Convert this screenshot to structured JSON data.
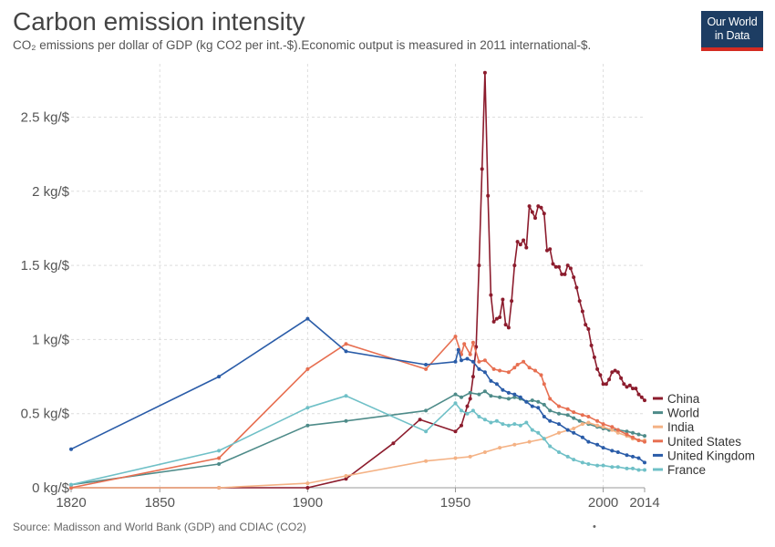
{
  "header": {
    "title": "Carbon emission intensity",
    "subtitle": "CO₂ emissions per dollar of GDP (kg CO2 per int.-$).Economic output is measured in 2011 international-$.",
    "logo_line1": "Our World",
    "logo_line2": "in Data"
  },
  "footer": {
    "source": "Source: Madisson and World Bank (GDP) and CDIAC (CO2)",
    "dot": "•"
  },
  "chart_data": {
    "type": "line",
    "ylabel": "",
    "xlabel": "",
    "xlim": [
      1820,
      2014
    ],
    "ylim": [
      0,
      2.8
    ],
    "x_ticks": [
      1820,
      1850,
      1900,
      1950,
      2000,
      2014
    ],
    "y_ticks": [
      {
        "value": 0,
        "label": "0 kg/$"
      },
      {
        "value": 0.5,
        "label": "0.5 kg/$"
      },
      {
        "value": 1,
        "label": "1 kg/$"
      },
      {
        "value": 1.5,
        "label": "1.5 kg/$"
      },
      {
        "value": 2,
        "label": "2 kg/$"
      },
      {
        "value": 2.5,
        "label": "2.5 kg/$"
      }
    ],
    "grid": true,
    "legend_position": "right",
    "series": [
      {
        "name": "China",
        "color": "#8c1c2d",
        "points": [
          [
            1820,
            0.0
          ],
          [
            1870,
            0.0
          ],
          [
            1900,
            0.0
          ],
          [
            1913,
            0.06
          ],
          [
            1929,
            0.3
          ],
          [
            1938,
            0.46
          ],
          [
            1950,
            0.38
          ],
          [
            1952,
            0.42
          ],
          [
            1954,
            0.55
          ],
          [
            1955,
            0.6
          ],
          [
            1956,
            0.75
          ],
          [
            1957,
            0.95
          ],
          [
            1958,
            1.5
          ],
          [
            1959,
            2.15
          ],
          [
            1960,
            2.8
          ],
          [
            1961,
            1.97
          ],
          [
            1962,
            1.3
          ],
          [
            1963,
            1.12
          ],
          [
            1964,
            1.14
          ],
          [
            1965,
            1.15
          ],
          [
            1966,
            1.27
          ],
          [
            1967,
            1.1
          ],
          [
            1968,
            1.08
          ],
          [
            1969,
            1.26
          ],
          [
            1970,
            1.5
          ],
          [
            1971,
            1.66
          ],
          [
            1972,
            1.64
          ],
          [
            1973,
            1.67
          ],
          [
            1974,
            1.62
          ],
          [
            1975,
            1.9
          ],
          [
            1976,
            1.86
          ],
          [
            1977,
            1.82
          ],
          [
            1978,
            1.9
          ],
          [
            1979,
            1.89
          ],
          [
            1980,
            1.85
          ],
          [
            1981,
            1.6
          ],
          [
            1982,
            1.61
          ],
          [
            1983,
            1.51
          ],
          [
            1984,
            1.49
          ],
          [
            1985,
            1.49
          ],
          [
            1986,
            1.44
          ],
          [
            1987,
            1.44
          ],
          [
            1988,
            1.5
          ],
          [
            1989,
            1.48
          ],
          [
            1990,
            1.42
          ],
          [
            1991,
            1.35
          ],
          [
            1992,
            1.26
          ],
          [
            1993,
            1.19
          ],
          [
            1994,
            1.1
          ],
          [
            1995,
            1.07
          ],
          [
            1996,
            0.96
          ],
          [
            1997,
            0.88
          ],
          [
            1998,
            0.8
          ],
          [
            1999,
            0.76
          ],
          [
            2000,
            0.7
          ],
          [
            2001,
            0.7
          ],
          [
            2002,
            0.73
          ],
          [
            2003,
            0.78
          ],
          [
            2004,
            0.79
          ],
          [
            2005,
            0.78
          ],
          [
            2006,
            0.74
          ],
          [
            2007,
            0.7
          ],
          [
            2008,
            0.68
          ],
          [
            2009,
            0.69
          ],
          [
            2010,
            0.67
          ],
          [
            2011,
            0.67
          ],
          [
            2012,
            0.63
          ],
          [
            2013,
            0.61
          ],
          [
            2014,
            0.59
          ]
        ]
      },
      {
        "name": "World",
        "color": "#4e8b89",
        "points": [
          [
            1820,
            0.02
          ],
          [
            1870,
            0.16
          ],
          [
            1900,
            0.42
          ],
          [
            1913,
            0.45
          ],
          [
            1940,
            0.52
          ],
          [
            1950,
            0.63
          ],
          [
            1952,
            0.61
          ],
          [
            1955,
            0.64
          ],
          [
            1958,
            0.63
          ],
          [
            1960,
            0.65
          ],
          [
            1962,
            0.62
          ],
          [
            1965,
            0.61
          ],
          [
            1968,
            0.6
          ],
          [
            1970,
            0.61
          ],
          [
            1972,
            0.6
          ],
          [
            1974,
            0.58
          ],
          [
            1976,
            0.59
          ],
          [
            1978,
            0.58
          ],
          [
            1980,
            0.56
          ],
          [
            1982,
            0.52
          ],
          [
            1985,
            0.5
          ],
          [
            1988,
            0.49
          ],
          [
            1990,
            0.47
          ],
          [
            1992,
            0.45
          ],
          [
            1995,
            0.43
          ],
          [
            1998,
            0.41
          ],
          [
            2000,
            0.4
          ],
          [
            2002,
            0.39
          ],
          [
            2005,
            0.39
          ],
          [
            2008,
            0.38
          ],
          [
            2010,
            0.37
          ],
          [
            2012,
            0.36
          ],
          [
            2014,
            0.35
          ]
        ]
      },
      {
        "name": "India",
        "color": "#f4b285",
        "points": [
          [
            1820,
            0.0
          ],
          [
            1870,
            0.0
          ],
          [
            1900,
            0.03
          ],
          [
            1913,
            0.08
          ],
          [
            1940,
            0.18
          ],
          [
            1950,
            0.2
          ],
          [
            1955,
            0.21
          ],
          [
            1960,
            0.24
          ],
          [
            1965,
            0.27
          ],
          [
            1970,
            0.29
          ],
          [
            1975,
            0.31
          ],
          [
            1980,
            0.33
          ],
          [
            1985,
            0.37
          ],
          [
            1990,
            0.4
          ],
          [
            1993,
            0.43
          ],
          [
            1995,
            0.44
          ],
          [
            1998,
            0.42
          ],
          [
            2000,
            0.41
          ],
          [
            2003,
            0.39
          ],
          [
            2005,
            0.37
          ],
          [
            2008,
            0.35
          ],
          [
            2010,
            0.33
          ],
          [
            2012,
            0.32
          ],
          [
            2014,
            0.32
          ]
        ]
      },
      {
        "name": "United States",
        "color": "#e76f51",
        "points": [
          [
            1820,
            0.0
          ],
          [
            1870,
            0.2
          ],
          [
            1900,
            0.8
          ],
          [
            1913,
            0.97
          ],
          [
            1940,
            0.8
          ],
          [
            1950,
            1.02
          ],
          [
            1952,
            0.9
          ],
          [
            1953,
            0.97
          ],
          [
            1955,
            0.9
          ],
          [
            1956,
            0.98
          ],
          [
            1958,
            0.85
          ],
          [
            1960,
            0.86
          ],
          [
            1963,
            0.8
          ],
          [
            1965,
            0.79
          ],
          [
            1968,
            0.78
          ],
          [
            1970,
            0.81
          ],
          [
            1971,
            0.83
          ],
          [
            1973,
            0.85
          ],
          [
            1975,
            0.81
          ],
          [
            1977,
            0.79
          ],
          [
            1979,
            0.76
          ],
          [
            1980,
            0.7
          ],
          [
            1982,
            0.6
          ],
          [
            1985,
            0.55
          ],
          [
            1988,
            0.53
          ],
          [
            1990,
            0.51
          ],
          [
            1993,
            0.49
          ],
          [
            1995,
            0.48
          ],
          [
            1998,
            0.45
          ],
          [
            2000,
            0.43
          ],
          [
            2003,
            0.41
          ],
          [
            2005,
            0.39
          ],
          [
            2008,
            0.36
          ],
          [
            2010,
            0.34
          ],
          [
            2012,
            0.32
          ],
          [
            2014,
            0.31
          ]
        ]
      },
      {
        "name": "United Kingdom",
        "color": "#2a5ca8",
        "points": [
          [
            1820,
            0.26
          ],
          [
            1870,
            0.75
          ],
          [
            1900,
            1.14
          ],
          [
            1913,
            0.92
          ],
          [
            1940,
            0.83
          ],
          [
            1950,
            0.85
          ],
          [
            1951,
            0.93
          ],
          [
            1952,
            0.86
          ],
          [
            1954,
            0.87
          ],
          [
            1956,
            0.85
          ],
          [
            1958,
            0.8
          ],
          [
            1960,
            0.78
          ],
          [
            1962,
            0.72
          ],
          [
            1964,
            0.7
          ],
          [
            1966,
            0.66
          ],
          [
            1968,
            0.64
          ],
          [
            1970,
            0.63
          ],
          [
            1972,
            0.61
          ],
          [
            1974,
            0.58
          ],
          [
            1976,
            0.55
          ],
          [
            1978,
            0.54
          ],
          [
            1980,
            0.48
          ],
          [
            1982,
            0.45
          ],
          [
            1985,
            0.43
          ],
          [
            1988,
            0.39
          ],
          [
            1990,
            0.37
          ],
          [
            1993,
            0.34
          ],
          [
            1995,
            0.31
          ],
          [
            1998,
            0.29
          ],
          [
            2000,
            0.27
          ],
          [
            2003,
            0.25
          ],
          [
            2005,
            0.24
          ],
          [
            2008,
            0.22
          ],
          [
            2010,
            0.21
          ],
          [
            2012,
            0.2
          ],
          [
            2014,
            0.17
          ]
        ]
      },
      {
        "name": "France",
        "color": "#6fc0c7",
        "points": [
          [
            1820,
            0.02
          ],
          [
            1870,
            0.25
          ],
          [
            1900,
            0.54
          ],
          [
            1913,
            0.62
          ],
          [
            1940,
            0.38
          ],
          [
            1950,
            0.57
          ],
          [
            1952,
            0.52
          ],
          [
            1954,
            0.5
          ],
          [
            1956,
            0.52
          ],
          [
            1958,
            0.48
          ],
          [
            1960,
            0.46
          ],
          [
            1962,
            0.44
          ],
          [
            1964,
            0.45
          ],
          [
            1966,
            0.43
          ],
          [
            1968,
            0.42
          ],
          [
            1970,
            0.43
          ],
          [
            1972,
            0.42
          ],
          [
            1974,
            0.44
          ],
          [
            1976,
            0.39
          ],
          [
            1978,
            0.37
          ],
          [
            1980,
            0.33
          ],
          [
            1982,
            0.28
          ],
          [
            1985,
            0.24
          ],
          [
            1988,
            0.21
          ],
          [
            1990,
            0.19
          ],
          [
            1993,
            0.17
          ],
          [
            1995,
            0.16
          ],
          [
            1998,
            0.15
          ],
          [
            2000,
            0.15
          ],
          [
            2003,
            0.14
          ],
          [
            2005,
            0.14
          ],
          [
            2008,
            0.13
          ],
          [
            2010,
            0.13
          ],
          [
            2012,
            0.12
          ],
          [
            2014,
            0.12
          ]
        ]
      }
    ]
  }
}
